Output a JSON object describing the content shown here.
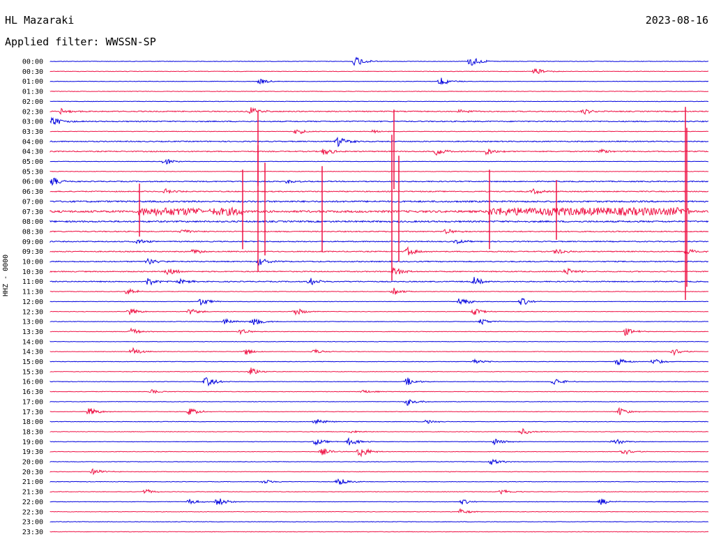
{
  "header": {
    "station": "HL Mazaraki",
    "filter": "Applied filter: WWSSN-SP",
    "date": "2023-08-16",
    "channel_label": "HHZ - 0000"
  },
  "chart_data": {
    "type": "line",
    "title": "",
    "ylabel": "HHZ - 0000",
    "grid": false,
    "colors": {
      "even_trace": "#0000dd",
      "odd_trace": "#ee1144"
    },
    "rows": [
      "00:00",
      "00:30",
      "01:00",
      "01:30",
      "02:00",
      "02:30",
      "03:00",
      "03:30",
      "04:00",
      "04:30",
      "05:00",
      "05:30",
      "06:00",
      "06:30",
      "07:00",
      "07:30",
      "08:00",
      "08:30",
      "09:00",
      "09:30",
      "10:00",
      "10:30",
      "11:00",
      "11:30",
      "12:00",
      "12:30",
      "13:00",
      "13:30",
      "14:00",
      "14:30",
      "15:00",
      "15:30",
      "16:00",
      "16:30",
      "17:00",
      "17:30",
      "18:00",
      "18:30",
      "19:00",
      "19:30",
      "20:00",
      "20:30",
      "21:00",
      "21:30",
      "22:00",
      "22:30",
      "23:00",
      "23:30"
    ],
    "noise_level": [
      1,
      1,
      1,
      1,
      1,
      2,
      2,
      1,
      2,
      2,
      1,
      1,
      2,
      2,
      3,
      16,
      3,
      2,
      2,
      2,
      2,
      2,
      2,
      1,
      1,
      1,
      1,
      1,
      1,
      1,
      1,
      1,
      1,
      1,
      1,
      1,
      1,
      1,
      1,
      1,
      1,
      1,
      1,
      1,
      1,
      1,
      1,
      1
    ],
    "minutes_per_row": 30
  }
}
